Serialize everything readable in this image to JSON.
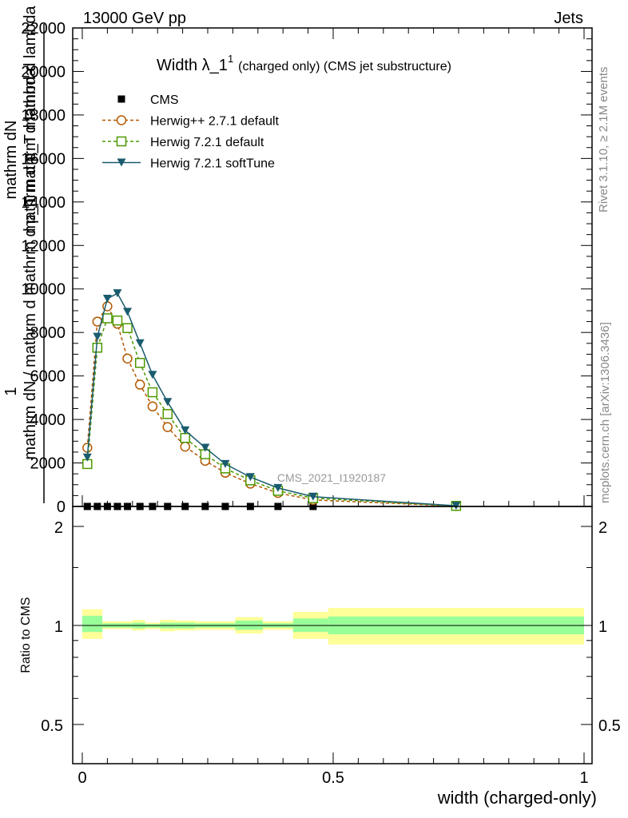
{
  "header": {
    "left": "13000 GeV pp",
    "right": "Jets"
  },
  "side_labels": {
    "rivet": "Rivet 3.1.10, ≥ 2.1M events",
    "mcplots": "mcplots.cern.ch [arXiv:1306.3436]"
  },
  "watermark": "CMS_2021_I1920187",
  "chart_data": [
    {
      "type": "line",
      "title_main": "Width λ_1",
      "title_sup": "1",
      "title_rest": "(charged only) (CMS jet substructure)",
      "ylabel_parts": [
        "1",
        "mathrm dN / mathrm d mathrm d p_T mathrm d lambda",
        "mathrm dN",
        "mathrm d p_T mathrm d lambda"
      ],
      "xlim": [
        0,
        1
      ],
      "ylim": [
        0,
        22000
      ],
      "yticks": [
        0,
        2000,
        4000,
        6000,
        8000,
        10000,
        12000,
        14000,
        16000,
        18000,
        20000,
        22000
      ],
      "ytick_labels": [
        "0",
        "2000",
        "4000",
        "6000",
        "8000",
        "10000",
        "12000",
        "14000",
        "16000",
        "18000",
        "20000",
        "22000"
      ],
      "legend": [
        {
          "name": "CMS",
          "color": "#000000",
          "marker": "square-filled"
        },
        {
          "name": "Herwig++ 2.7.1 default",
          "color": "#b35900",
          "marker": "circle-open",
          "dash": true
        },
        {
          "name": "Herwig 7.2.1 default",
          "color": "#4d9900",
          "marker": "square-open",
          "dash": true
        },
        {
          "name": "Herwig 7.2.1 softTune",
          "color": "#1a5c6e",
          "marker": "triangle-down-filled",
          "dash": false
        }
      ],
      "series": [
        {
          "name": "CMS",
          "x": [
            0.01,
            0.03,
            0.05,
            0.07,
            0.09,
            0.115,
            0.14,
            0.17,
            0.205,
            0.245,
            0.285,
            0.335,
            0.39,
            0.46
          ],
          "y": [
            0,
            0,
            0,
            0,
            0,
            0,
            0,
            0,
            0,
            0,
            0,
            0,
            0,
            0
          ]
        },
        {
          "name": "Herwig++ 2.7.1 default",
          "x": [
            0.01,
            0.03,
            0.05,
            0.07,
            0.09,
            0.115,
            0.14,
            0.17,
            0.205,
            0.245,
            0.285,
            0.335,
            0.39,
            0.46,
            0.745
          ],
          "y": [
            2700,
            8500,
            9200,
            8400,
            6800,
            5600,
            4600,
            3650,
            2750,
            2100,
            1550,
            1050,
            620,
            300,
            20
          ]
        },
        {
          "name": "Herwig 7.2.1 default",
          "x": [
            0.01,
            0.03,
            0.05,
            0.07,
            0.09,
            0.115,
            0.14,
            0.17,
            0.205,
            0.245,
            0.285,
            0.335,
            0.39,
            0.46,
            0.745
          ],
          "y": [
            1950,
            7300,
            8650,
            8550,
            8200,
            6600,
            5250,
            4250,
            3150,
            2400,
            1750,
            1200,
            720,
            380,
            25
          ]
        },
        {
          "name": "Herwig 7.2.1 softTune",
          "x": [
            0.01,
            0.03,
            0.05,
            0.07,
            0.09,
            0.115,
            0.14,
            0.17,
            0.205,
            0.245,
            0.285,
            0.335,
            0.39,
            0.46,
            0.745
          ],
          "y": [
            2250,
            7800,
            9550,
            9800,
            8950,
            7500,
            6050,
            4800,
            3500,
            2700,
            1950,
            1350,
            850,
            450,
            30
          ]
        }
      ]
    },
    {
      "type": "area",
      "ylabel": "Ratio to CMS",
      "xlabel": "width (charged-only)",
      "xlim": [
        0,
        1
      ],
      "ylim": [
        0.38,
        2.3
      ],
      "yticks": [
        0.5,
        1,
        2
      ],
      "ytick_labels": [
        "0.5",
        "1",
        "2"
      ],
      "xticks": [
        0,
        0.5,
        1
      ],
      "xtick_labels": [
        "0",
        "0.5",
        "1"
      ],
      "band_colors": {
        "outer": "#ffff99",
        "inner": "#99ff99",
        "line": "#000000"
      },
      "bins": [
        {
          "x0": 0.0,
          "x1": 0.04,
          "outer": [
            0.91,
            1.12
          ],
          "inner": [
            0.955,
            1.07
          ]
        },
        {
          "x0": 0.04,
          "x1": 0.1,
          "outer": [
            0.975,
            1.03
          ],
          "inner": [
            0.985,
            1.015
          ]
        },
        {
          "x0": 0.1,
          "x1": 0.125,
          "outer": [
            0.965,
            1.04
          ],
          "inner": [
            0.98,
            1.02
          ]
        },
        {
          "x0": 0.125,
          "x1": 0.155,
          "outer": [
            0.975,
            1.02
          ],
          "inner": [
            0.985,
            1.01
          ]
        },
        {
          "x0": 0.155,
          "x1": 0.185,
          "outer": [
            0.96,
            1.04
          ],
          "inner": [
            0.98,
            1.02
          ]
        },
        {
          "x0": 0.185,
          "x1": 0.225,
          "outer": [
            0.965,
            1.035
          ],
          "inner": [
            0.98,
            1.02
          ]
        },
        {
          "x0": 0.225,
          "x1": 0.305,
          "outer": [
            0.97,
            1.03
          ],
          "inner": [
            0.985,
            1.015
          ]
        },
        {
          "x0": 0.305,
          "x1": 0.36,
          "outer": [
            0.945,
            1.06
          ],
          "inner": [
            0.97,
            1.035
          ]
        },
        {
          "x0": 0.36,
          "x1": 0.42,
          "outer": [
            0.97,
            1.03
          ],
          "inner": [
            0.985,
            1.015
          ]
        },
        {
          "x0": 0.42,
          "x1": 0.49,
          "outer": [
            0.91,
            1.1
          ],
          "inner": [
            0.955,
            1.05
          ]
        },
        {
          "x0": 0.49,
          "x1": 1.0,
          "outer": [
            0.875,
            1.13
          ],
          "inner": [
            0.94,
            1.065
          ]
        }
      ]
    }
  ]
}
